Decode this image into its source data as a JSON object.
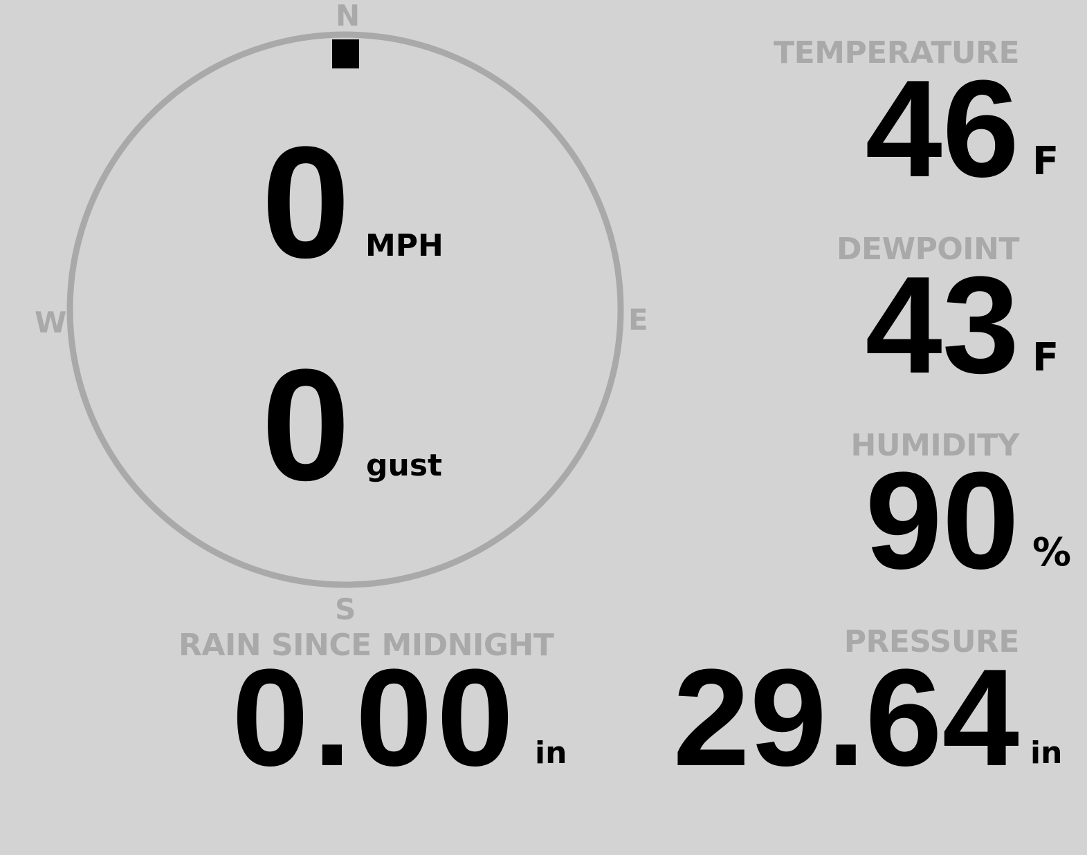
{
  "wind": {
    "speed": "0",
    "speed_unit": "MPH",
    "gust": "0",
    "gust_unit": "gust",
    "direction_deg": 0,
    "compass": {
      "n": "N",
      "e": "E",
      "s": "S",
      "w": "W"
    }
  },
  "temperature": {
    "label": "TEMPERATURE",
    "value": "46",
    "unit": "F"
  },
  "dewpoint": {
    "label": "DEWPOINT",
    "value": "43",
    "unit": "F"
  },
  "humidity": {
    "label": "HUMIDITY",
    "value": "90",
    "unit": "%"
  },
  "rain": {
    "label": "RAIN SINCE MIDNIGHT",
    "value": "0.00",
    "unit": "in"
  },
  "pressure": {
    "label": "PRESSURE",
    "value": "29.64",
    "unit": "in"
  },
  "colors": {
    "background": "#d3d3d3",
    "muted": "#a9a9a9",
    "value": "#000000"
  }
}
